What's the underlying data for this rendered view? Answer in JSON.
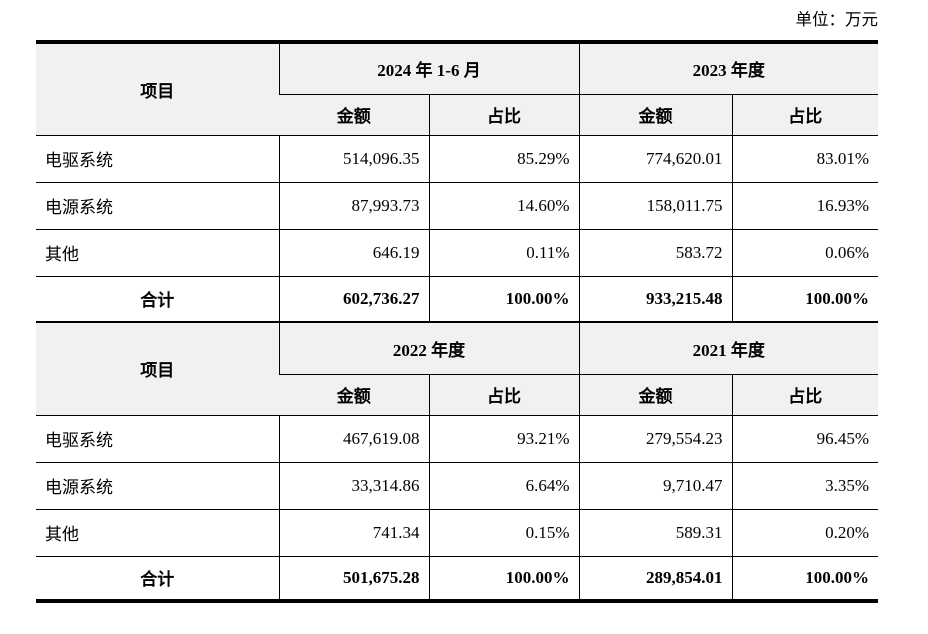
{
  "unit_label": "单位：万元",
  "colors": {
    "page_bg": "#ffffff",
    "text_color": "#000000",
    "border_color": "#000000",
    "header_bg": "#f1f1f1"
  },
  "tables": [
    {
      "item_header": "项目",
      "groups": [
        {
          "label": "2024 年 1-6 月",
          "sub": [
            "金额",
            "占比"
          ]
        },
        {
          "label": "2023 年度",
          "sub": [
            "金额",
            "占比"
          ]
        }
      ],
      "rows": [
        {
          "label": "电驱系统",
          "values": [
            "514,096.35",
            "85.29%",
            "774,620.01",
            "83.01%"
          ]
        },
        {
          "label": "电源系统",
          "values": [
            "87,993.73",
            "14.60%",
            "158,011.75",
            "16.93%"
          ]
        },
        {
          "label": "其他",
          "values": [
            "646.19",
            "0.11%",
            "583.72",
            "0.06%"
          ]
        },
        {
          "label": "合计",
          "values": [
            "602,736.27",
            "100.00%",
            "933,215.48",
            "100.00%"
          ],
          "is_total": true
        }
      ]
    },
    {
      "item_header": "项目",
      "groups": [
        {
          "label": "2022 年度",
          "sub": [
            "金额",
            "占比"
          ]
        },
        {
          "label": "2021 年度",
          "sub": [
            "金额",
            "占比"
          ]
        }
      ],
      "rows": [
        {
          "label": "电驱系统",
          "values": [
            "467,619.08",
            "93.21%",
            "279,554.23",
            "96.45%"
          ]
        },
        {
          "label": "电源系统",
          "values": [
            "33,314.86",
            "6.64%",
            "9,710.47",
            "3.35%"
          ]
        },
        {
          "label": "其他",
          "values": [
            "741.34",
            "0.15%",
            "589.31",
            "0.20%"
          ]
        },
        {
          "label": "合计",
          "values": [
            "501,675.28",
            "100.00%",
            "289,854.01",
            "100.00%"
          ],
          "is_total": true
        }
      ]
    }
  ]
}
